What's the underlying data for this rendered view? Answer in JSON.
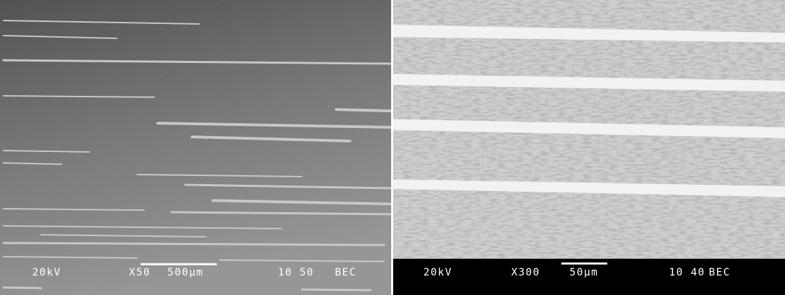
{
  "panels": [
    {
      "voltage": "20kV",
      "magnification": "X50",
      "scale": "500µm",
      "code": "10 50",
      "mode": "BEC"
    },
    {
      "voltage": "20kV",
      "magnification": "X300",
      "scale": "50µm",
      "code": "10 40",
      "mode": "BEC"
    }
  ]
}
